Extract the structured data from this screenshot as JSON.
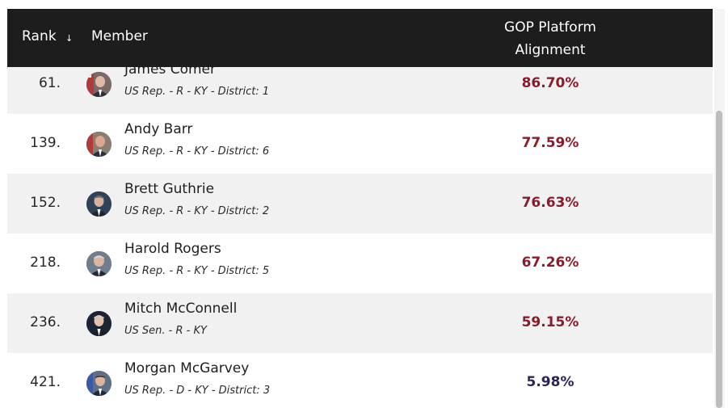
{
  "header": {
    "rank_label": "Rank",
    "sort_icon": "arrow-down-icon",
    "sort_glyph": "↓",
    "member_label": "Member",
    "alignment_line1": "GOP Platform",
    "alignment_line2": "Alignment"
  },
  "colors": {
    "header_bg": "#1d1d1d",
    "republican_pct": "#8b1a2b",
    "democrat_pct": "#2a2358",
    "alt_row": "#f1f1f1"
  },
  "rows": [
    {
      "rank": "61.",
      "name": "James Comer",
      "detail": "US Rep. - R - KY - District: 1",
      "pct": "86.70%",
      "party": "R"
    },
    {
      "rank": "139.",
      "name": "Andy Barr",
      "detail": "US Rep. - R - KY - District: 6",
      "pct": "77.59%",
      "party": "R"
    },
    {
      "rank": "152.",
      "name": "Brett Guthrie",
      "detail": "US Rep. - R - KY - District: 2",
      "pct": "76.63%",
      "party": "R"
    },
    {
      "rank": "218.",
      "name": "Harold Rogers",
      "detail": "US Rep. - R - KY - District: 5",
      "pct": "67.26%",
      "party": "R"
    },
    {
      "rank": "236.",
      "name": "Mitch McConnell",
      "detail": "US Sen. - R - KY",
      "pct": "59.15%",
      "party": "R"
    },
    {
      "rank": "421.",
      "name": "Morgan McGarvey",
      "detail": "US Rep. - D - KY - District: 3",
      "pct": "5.98%",
      "party": "D"
    }
  ]
}
